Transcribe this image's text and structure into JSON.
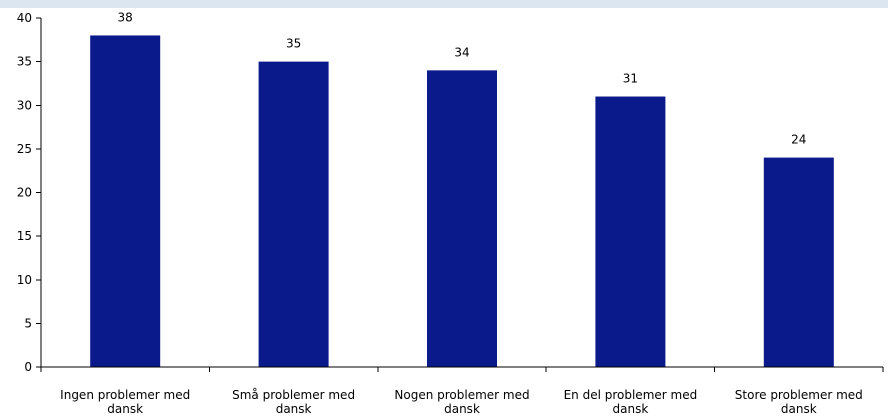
{
  "chart_data": {
    "type": "bar",
    "categories": [
      [
        "Ingen problemer med",
        "dansk"
      ],
      [
        "Små problemer med",
        "dansk"
      ],
      [
        "Nogen problemer med",
        "dansk"
      ],
      [
        "En del problemer med",
        "dansk"
      ],
      [
        "Store problemer med",
        "dansk"
      ]
    ],
    "values": [
      38,
      35,
      34,
      31,
      24
    ],
    "ylim": [
      0,
      40
    ],
    "yticks": [
      0,
      5,
      10,
      15,
      20,
      25,
      30,
      35,
      40
    ],
    "grid": false,
    "legend": "none",
    "title": "",
    "xlabel": "",
    "ylabel": "",
    "colors": {
      "bar": "#0a1a8a",
      "background_band": "#dce6f0"
    }
  }
}
